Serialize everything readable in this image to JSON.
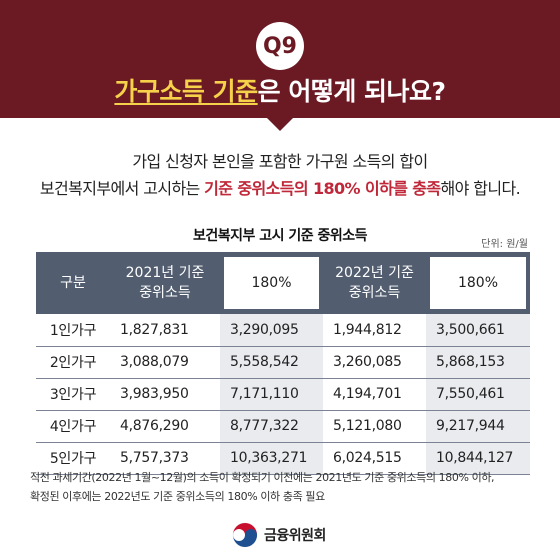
{
  "header": {
    "badge": "Q9",
    "title_highlight": "가구소득 기준",
    "title_rest": "은 어떻게 되나요?",
    "bg_color": "#6b1a24",
    "highlight_color": "#f6d24b"
  },
  "intro": {
    "line1": "가입 신청자 본인을 포함한 가구원 소득의 합이",
    "line2_pre": "보건복지부에서 고시하는 ",
    "line2_em": "기준 중위소득의 180% 이하를 충족",
    "line2_post": "해야 합니다.",
    "em_color": "#c0283a"
  },
  "table": {
    "title": "보건복지부 고시 기준 중위소득",
    "unit": "단위: 원/월",
    "headers": {
      "category": "구분",
      "y2021_line1": "2021년 기준",
      "y2021_line2": "중위소득",
      "pct2021": "180%",
      "y2022_line1": "2022년 기준",
      "y2022_line2": "중위소득",
      "pct2022": "180%"
    },
    "rows": [
      {
        "label": "1인가구",
        "v2021": "1,827,831",
        "p2021": "3,290,095",
        "v2022": "1,944,812",
        "p2022": "3,500,661"
      },
      {
        "label": "2인가구",
        "v2021": "3,088,079",
        "p2021": "5,558,542",
        "v2022": "3,260,085",
        "p2022": "5,868,153"
      },
      {
        "label": "3인가구",
        "v2021": "3,983,950",
        "p2021": "7,171,110",
        "v2022": "4,194,701",
        "p2022": "7,550,461"
      },
      {
        "label": "4인가구",
        "v2021": "4,876,290",
        "p2021": "8,777,322",
        "v2022": "5,121,080",
        "p2022": "9,217,944"
      },
      {
        "label": "5인가구",
        "v2021": "5,757,373",
        "p2021": "10,363,271",
        "v2022": "6,024,515",
        "p2022": "10,844,127"
      }
    ]
  },
  "footnote": {
    "line1": "직전 과세기간(2022년 1월~12월)의 소득이 확정되기 이전에는 2021년도 기준 중위소득의 180% 이하,",
    "line2": "확정된 이후에는 2022년도 기준 중위소득의 180% 이하 충족 필요"
  },
  "logo": {
    "text": "금융위원회",
    "icon": "taegeuk-emblem-icon"
  }
}
